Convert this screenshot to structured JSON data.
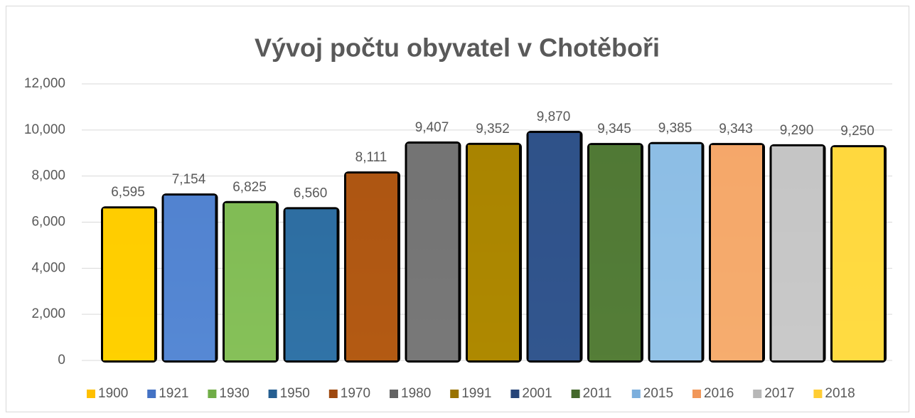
{
  "chart_data": {
    "type": "bar",
    "title": "Vývoj počtu obyvatel v Chotěboři",
    "series": [
      {
        "name": "1900",
        "color": "#ffc000",
        "values": [
          6595
        ],
        "value_labels": [
          "6,595"
        ]
      },
      {
        "name": "1921",
        "color": "#4472c4",
        "values": [
          7154
        ],
        "value_labels": [
          "7,154"
        ]
      },
      {
        "name": "1930",
        "color": "#70ad47",
        "values": [
          6825
        ],
        "value_labels": [
          "6,825"
        ]
      },
      {
        "name": "1950",
        "color": "#255e91",
        "values": [
          6560
        ],
        "value_labels": [
          "6,560"
        ]
      },
      {
        "name": "1970",
        "color": "#9e480e",
        "values": [
          8111
        ],
        "value_labels": [
          "8,111"
        ]
      },
      {
        "name": "1980",
        "color": "#636363",
        "values": [
          9407
        ],
        "value_labels": [
          "9,407"
        ]
      },
      {
        "name": "1991",
        "color": "#997300",
        "values": [
          9352
        ],
        "value_labels": [
          "9,352"
        ]
      },
      {
        "name": "2001",
        "color": "#264478",
        "values": [
          9870
        ],
        "value_labels": [
          "9,870"
        ]
      },
      {
        "name": "2011",
        "color": "#43682b",
        "values": [
          9345
        ],
        "value_labels": [
          "9,345"
        ]
      },
      {
        "name": "2015",
        "color": "#7cafdd",
        "values": [
          9385
        ],
        "value_labels": [
          "9,385"
        ]
      },
      {
        "name": "2016",
        "color": "#f1975a",
        "values": [
          9343
        ],
        "value_labels": [
          "9,343"
        ]
      },
      {
        "name": "2017",
        "color": "#b7b7b7",
        "values": [
          9290
        ],
        "value_labels": [
          "9,290"
        ]
      },
      {
        "name": "2018",
        "color": "#ffcd33",
        "values": [
          9250
        ],
        "value_labels": [
          "9,250"
        ]
      }
    ],
    "ylim": [
      0,
      12000
    ],
    "yticks": [
      0,
      {
        "value": 2000,
        "label": "2,000"
      },
      {
        "value": 4000,
        "label": "4,000"
      },
      {
        "value": 6000,
        "label": "6,000"
      },
      {
        "value": 8000,
        "label": "8,000"
      },
      {
        "value": 10000,
        "label": "10,000"
      },
      {
        "value": 12000,
        "label": "12,000"
      }
    ],
    "grid": true,
    "legend": "bottom"
  }
}
